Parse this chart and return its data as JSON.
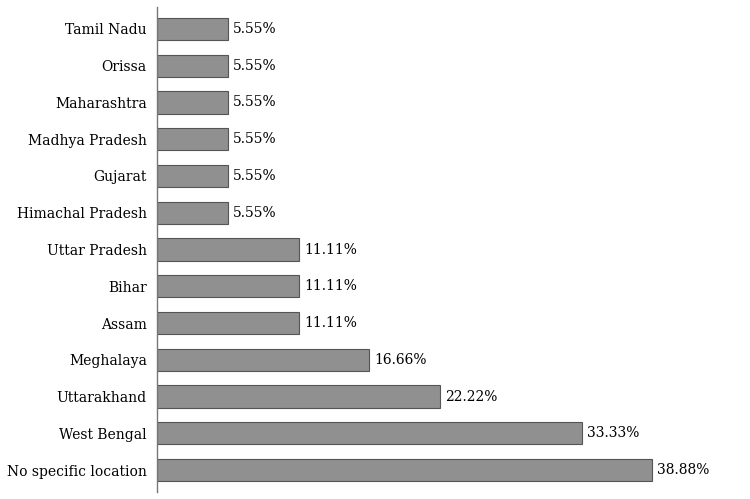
{
  "categories": [
    "No specific location",
    "West Bengal",
    "Uttarakhand",
    "Meghalaya",
    "Assam",
    "Bihar",
    "Uttar Pradesh",
    "Himachal Pradesh",
    "Gujarat",
    "Madhya Pradesh",
    "Maharashtra",
    "Orissa",
    "Tamil Nadu"
  ],
  "values": [
    38.88,
    33.33,
    22.22,
    16.66,
    11.11,
    11.11,
    11.11,
    5.55,
    5.55,
    5.55,
    5.55,
    5.55,
    5.55
  ],
  "labels": [
    "38.88%",
    "33.33%",
    "22.22%",
    "16.66%",
    "11.11%",
    "11.11%",
    "11.11%",
    "5.55%",
    "5.55%",
    "5.55%",
    "5.55%",
    "5.55%",
    "5.55%"
  ],
  "bar_color": "#909090",
  "bar_edgecolor": "#555555",
  "background_color": "#ffffff",
  "xlim": [
    0,
    46
  ],
  "label_fontsize": 10,
  "tick_fontsize": 10,
  "bar_height": 0.6
}
